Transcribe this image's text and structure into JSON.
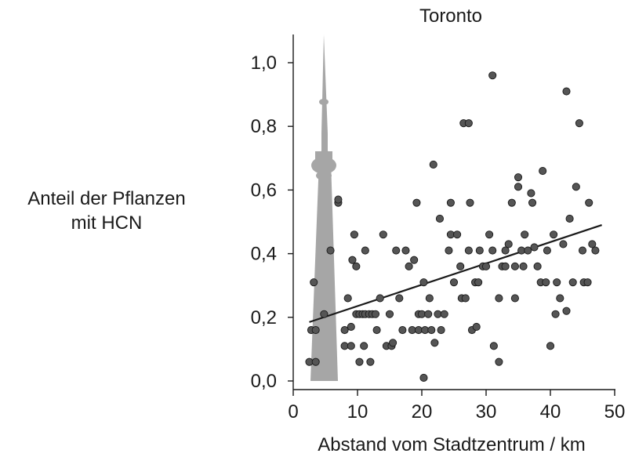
{
  "chart_data": {
    "type": "scatter",
    "title": "Toronto",
    "xlabel": "Abstand vom Stadtzentrum / km",
    "ylabel": [
      "Anteil der Pflanzen",
      "mit HCN"
    ],
    "xlim": [
      0,
      50
    ],
    "ylim": [
      0,
      1.0
    ],
    "x_ticks": [
      "0",
      "10",
      "20",
      "30",
      "40",
      "50"
    ],
    "y_ticks": [
      "0,0",
      "0,2",
      "0,4",
      "0,6",
      "0,8",
      "1,0"
    ],
    "grid": false,
    "legend": "none",
    "colors": {
      "point_fill": "#555555",
      "point_stroke": "#1a1a1a",
      "tower": "#a6a6a6",
      "trend": "#1a1a1a"
    },
    "illustration": "cn-tower-icon",
    "trend_line": {
      "x": [
        2.5,
        48
      ],
      "y": [
        0.185,
        0.49
      ]
    },
    "points": [
      {
        "x": 2.5,
        "y": 0.06
      },
      {
        "x": 3.5,
        "y": 0.06
      },
      {
        "x": 2.8,
        "y": 0.16
      },
      {
        "x": 3.5,
        "y": 0.16
      },
      {
        "x": 3.2,
        "y": 0.31
      },
      {
        "x": 4.8,
        "y": 0.21
      },
      {
        "x": 5.8,
        "y": 0.41
      },
      {
        "x": 7,
        "y": 0.56
      },
      {
        "x": 7,
        "y": 0.57
      },
      {
        "x": 8,
        "y": 0.11
      },
      {
        "x": 8,
        "y": 0.16
      },
      {
        "x": 8.5,
        "y": 0.26
      },
      {
        "x": 9,
        "y": 0.17
      },
      {
        "x": 9,
        "y": 0.11
      },
      {
        "x": 9.2,
        "y": 0.38
      },
      {
        "x": 9.5,
        "y": 0.46
      },
      {
        "x": 9.8,
        "y": 0.36
      },
      {
        "x": 9.8,
        "y": 0.21
      },
      {
        "x": 10.3,
        "y": 0.21
      },
      {
        "x": 10.3,
        "y": 0.06
      },
      {
        "x": 10.8,
        "y": 0.21
      },
      {
        "x": 11,
        "y": 0.11
      },
      {
        "x": 11.2,
        "y": 0.21
      },
      {
        "x": 11.2,
        "y": 0.41
      },
      {
        "x": 11.8,
        "y": 0.21
      },
      {
        "x": 12,
        "y": 0.06
      },
      {
        "x": 12.3,
        "y": 0.21
      },
      {
        "x": 12.8,
        "y": 0.21
      },
      {
        "x": 13,
        "y": 0.16
      },
      {
        "x": 13.5,
        "y": 0.26
      },
      {
        "x": 14,
        "y": 0.46
      },
      {
        "x": 14.5,
        "y": 0.11
      },
      {
        "x": 15,
        "y": 0.21
      },
      {
        "x": 15.3,
        "y": 0.11
      },
      {
        "x": 15.5,
        "y": 0.12
      },
      {
        "x": 16,
        "y": 0.41
      },
      {
        "x": 16.5,
        "y": 0.26
      },
      {
        "x": 17,
        "y": 0.16
      },
      {
        "x": 17.5,
        "y": 0.41
      },
      {
        "x": 18,
        "y": 0.36
      },
      {
        "x": 18.5,
        "y": 0.16
      },
      {
        "x": 18.8,
        "y": 0.38
      },
      {
        "x": 19.2,
        "y": 0.56
      },
      {
        "x": 19.5,
        "y": 0.16
      },
      {
        "x": 19.5,
        "y": 0.21
      },
      {
        "x": 20,
        "y": 0.21
      },
      {
        "x": 20.3,
        "y": 0.31
      },
      {
        "x": 20.3,
        "y": 0.01
      },
      {
        "x": 20.5,
        "y": 0.16
      },
      {
        "x": 21,
        "y": 0.21
      },
      {
        "x": 21.2,
        "y": 0.26
      },
      {
        "x": 21.5,
        "y": 0.16
      },
      {
        "x": 21.8,
        "y": 0.68
      },
      {
        "x": 22,
        "y": 0.12
      },
      {
        "x": 22.5,
        "y": 0.21
      },
      {
        "x": 22.8,
        "y": 0.51
      },
      {
        "x": 23,
        "y": 0.16
      },
      {
        "x": 23.5,
        "y": 0.21
      },
      {
        "x": 24.2,
        "y": 0.41
      },
      {
        "x": 24.5,
        "y": 0.56
      },
      {
        "x": 24.5,
        "y": 0.46
      },
      {
        "x": 25,
        "y": 0.31
      },
      {
        "x": 25.5,
        "y": 0.46
      },
      {
        "x": 26,
        "y": 0.36
      },
      {
        "x": 26.2,
        "y": 0.26
      },
      {
        "x": 26.5,
        "y": 0.81
      },
      {
        "x": 26.8,
        "y": 0.26
      },
      {
        "x": 27.3,
        "y": 0.81
      },
      {
        "x": 27.3,
        "y": 0.41
      },
      {
        "x": 27.5,
        "y": 0.56
      },
      {
        "x": 27.8,
        "y": 0.16
      },
      {
        "x": 28.3,
        "y": 0.31
      },
      {
        "x": 28.5,
        "y": 0.17
      },
      {
        "x": 28.8,
        "y": 0.31
      },
      {
        "x": 29,
        "y": 0.41
      },
      {
        "x": 29.5,
        "y": 0.36
      },
      {
        "x": 30,
        "y": 0.36
      },
      {
        "x": 30.5,
        "y": 0.46
      },
      {
        "x": 31,
        "y": 0.96
      },
      {
        "x": 31,
        "y": 0.41
      },
      {
        "x": 31.2,
        "y": 0.11
      },
      {
        "x": 32,
        "y": 0.06
      },
      {
        "x": 32,
        "y": 0.26
      },
      {
        "x": 32.5,
        "y": 0.36
      },
      {
        "x": 33,
        "y": 0.41
      },
      {
        "x": 33,
        "y": 0.36
      },
      {
        "x": 33.5,
        "y": 0.43
      },
      {
        "x": 34,
        "y": 0.56
      },
      {
        "x": 34.5,
        "y": 0.36
      },
      {
        "x": 34.5,
        "y": 0.26
      },
      {
        "x": 35,
        "y": 0.61
      },
      {
        "x": 35,
        "y": 0.64
      },
      {
        "x": 35.5,
        "y": 0.41
      },
      {
        "x": 35.8,
        "y": 0.36
      },
      {
        "x": 36,
        "y": 0.46
      },
      {
        "x": 36.5,
        "y": 0.41
      },
      {
        "x": 37,
        "y": 0.59
      },
      {
        "x": 37.2,
        "y": 0.56
      },
      {
        "x": 37.5,
        "y": 0.42
      },
      {
        "x": 38,
        "y": 0.36
      },
      {
        "x": 38.5,
        "y": 0.31
      },
      {
        "x": 38.8,
        "y": 0.66
      },
      {
        "x": 39.3,
        "y": 0.31
      },
      {
        "x": 39.5,
        "y": 0.41
      },
      {
        "x": 40,
        "y": 0.11
      },
      {
        "x": 40.5,
        "y": 0.46
      },
      {
        "x": 40.8,
        "y": 0.21
      },
      {
        "x": 41,
        "y": 0.31
      },
      {
        "x": 41.5,
        "y": 0.26
      },
      {
        "x": 42,
        "y": 0.43
      },
      {
        "x": 42.5,
        "y": 0.91
      },
      {
        "x": 42.5,
        "y": 0.22
      },
      {
        "x": 43,
        "y": 0.51
      },
      {
        "x": 43.5,
        "y": 0.31
      },
      {
        "x": 44,
        "y": 0.61
      },
      {
        "x": 44.5,
        "y": 0.81
      },
      {
        "x": 45,
        "y": 0.41
      },
      {
        "x": 45.2,
        "y": 0.31
      },
      {
        "x": 45.8,
        "y": 0.31
      },
      {
        "x": 46,
        "y": 0.56
      },
      {
        "x": 46.5,
        "y": 0.43
      },
      {
        "x": 47,
        "y": 0.41
      }
    ]
  }
}
